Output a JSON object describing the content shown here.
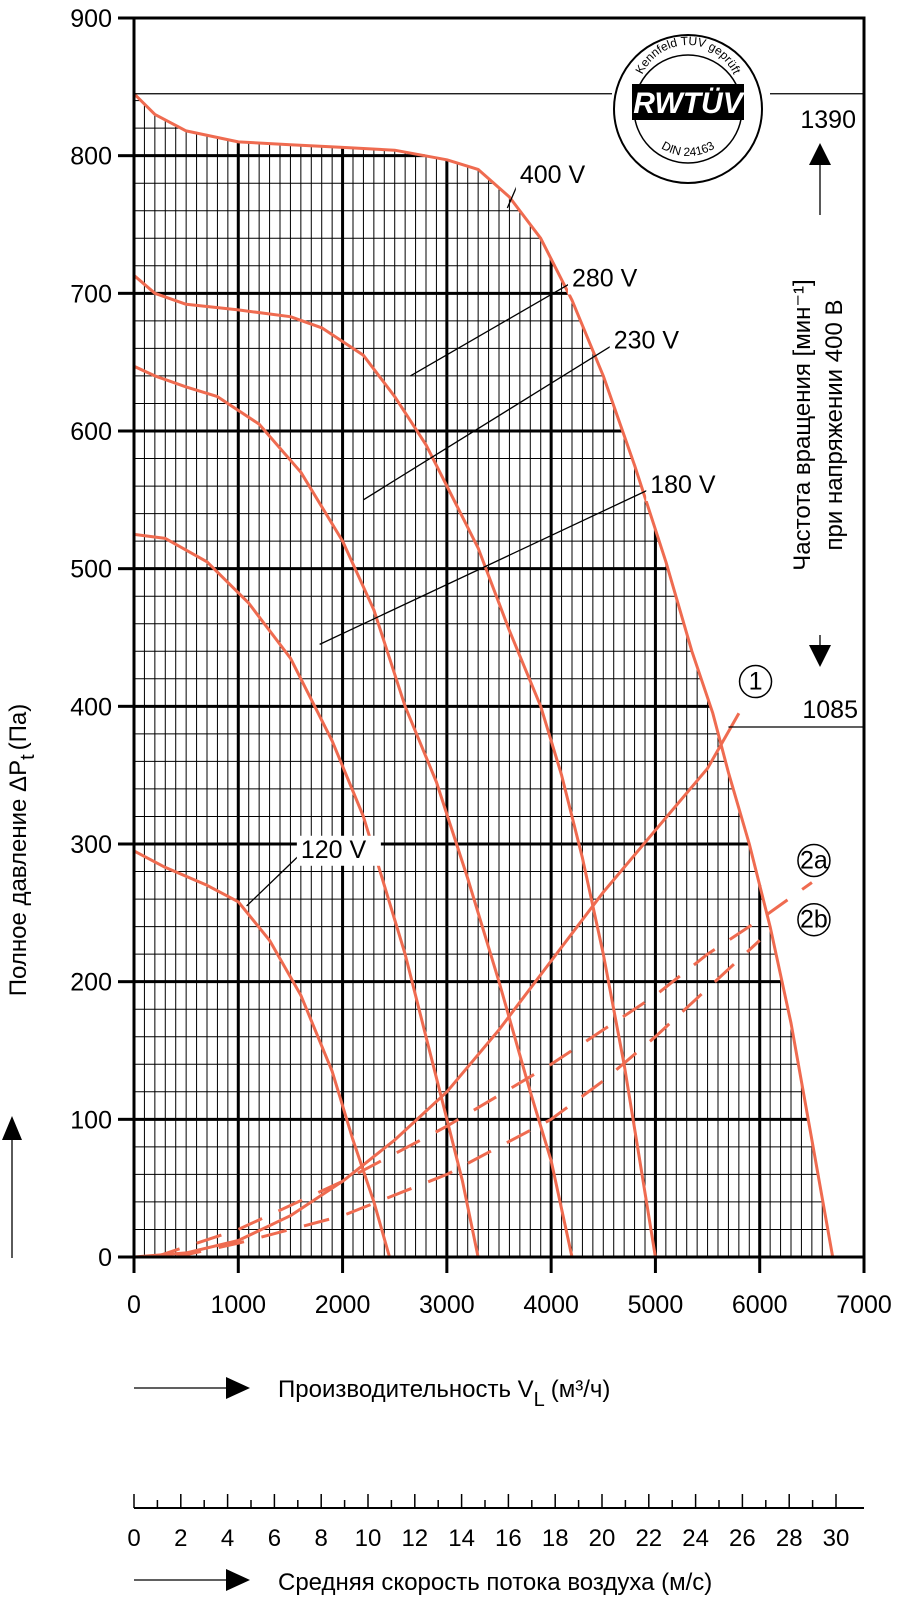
{
  "chart_data": {
    "type": "line",
    "xlabel": "Производительность V",
    "xlabel_sub": "L",
    "xlabel_unit": "(м³/ч)",
    "ylabel": "Полное давление ΔP",
    "ylabel_sub": "t",
    "ylabel_unit": "(Па)",
    "x2label": "Средняя скорость потока воздуха (м/с)",
    "right_label_line1": "Частота вращения [мин⁻¹]",
    "right_label_line2": "при напряжении 400 В",
    "xlim": [
      0,
      7000
    ],
    "ylim": [
      0,
      900
    ],
    "grid": true,
    "x_ticks": [
      "0",
      "1000",
      "2000",
      "3000",
      "4000",
      "5000",
      "6000",
      "7000"
    ],
    "y_ticks": [
      "0",
      "100",
      "200",
      "300",
      "400",
      "500",
      "600",
      "700",
      "800",
      "900"
    ],
    "x2_ticks": [
      "0",
      "2",
      "4",
      "6",
      "8",
      "10",
      "12",
      "14",
      "16",
      "18",
      "20",
      "22",
      "24",
      "26",
      "28",
      "30"
    ],
    "x2_max": 30,
    "rpm_top": "1390",
    "rpm_top_pressure": 845,
    "rpm_bottom": "1085",
    "rpm_bottom_pressure": 385,
    "seal": {
      "top": "Kennfeld TÜV geprüft",
      "logo": "RWTÜV",
      "bottom": "DIN 24163"
    },
    "curve_color": "#ef6b50",
    "series": [
      {
        "name": "400 V",
        "label_at": [
          3700,
          780
        ],
        "leader_to": [
          3580,
          762
        ],
        "points": [
          [
            0,
            845
          ],
          [
            200,
            830
          ],
          [
            500,
            818
          ],
          [
            1000,
            810
          ],
          [
            1500,
            808
          ],
          [
            2000,
            806
          ],
          [
            2500,
            804
          ],
          [
            3000,
            797
          ],
          [
            3300,
            790
          ],
          [
            3600,
            770
          ],
          [
            3900,
            740
          ],
          [
            4200,
            695
          ],
          [
            4500,
            640
          ],
          [
            4800,
            575
          ],
          [
            5100,
            505
          ],
          [
            5350,
            440
          ],
          [
            5550,
            395
          ],
          [
            5700,
            352
          ],
          [
            5900,
            300
          ],
          [
            6100,
            240
          ],
          [
            6300,
            170
          ],
          [
            6500,
            85
          ],
          [
            6700,
            0
          ]
        ]
      },
      {
        "name": "280 V",
        "label_at": [
          4200,
          705
        ],
        "leader_to": [
          2650,
          640
        ],
        "points": [
          [
            0,
            713
          ],
          [
            200,
            700
          ],
          [
            500,
            692
          ],
          [
            1000,
            688
          ],
          [
            1500,
            683
          ],
          [
            1800,
            675
          ],
          [
            2200,
            655
          ],
          [
            2500,
            625
          ],
          [
            2800,
            590
          ],
          [
            3000,
            560
          ],
          [
            3300,
            515
          ],
          [
            3600,
            455
          ],
          [
            3900,
            400
          ],
          [
            4100,
            350
          ],
          [
            4300,
            290
          ],
          [
            4500,
            220
          ],
          [
            4700,
            140
          ],
          [
            4850,
            70
          ],
          [
            5000,
            0
          ]
        ]
      },
      {
        "name": "230 V",
        "label_at": [
          4600,
          660
        ],
        "leader_to": [
          2200,
          550
        ],
        "points": [
          [
            0,
            647
          ],
          [
            200,
            640
          ],
          [
            500,
            632
          ],
          [
            800,
            625
          ],
          [
            1200,
            605
          ],
          [
            1600,
            570
          ],
          [
            2000,
            520
          ],
          [
            2300,
            470
          ],
          [
            2600,
            400
          ],
          [
            2900,
            345
          ],
          [
            3200,
            275
          ],
          [
            3500,
            200
          ],
          [
            3800,
            120
          ],
          [
            4000,
            70
          ],
          [
            4200,
            0
          ]
        ]
      },
      {
        "name": "180 V",
        "label_at": [
          4950,
          555
        ],
        "leader_to": [
          1780,
          445
        ],
        "points": [
          [
            0,
            525
          ],
          [
            300,
            522
          ],
          [
            700,
            505
          ],
          [
            1100,
            475
          ],
          [
            1500,
            435
          ],
          [
            1900,
            375
          ],
          [
            2200,
            320
          ],
          [
            2400,
            270
          ],
          [
            2600,
            220
          ],
          [
            2800,
            160
          ],
          [
            3000,
            100
          ],
          [
            3150,
            55
          ],
          [
            3300,
            0
          ]
        ]
      },
      {
        "name": "120 V",
        "label_at": [
          1600,
          290
        ],
        "leader_to": [
          1080,
          255
        ],
        "points": [
          [
            0,
            295
          ],
          [
            300,
            283
          ],
          [
            700,
            270
          ],
          [
            1000,
            258
          ],
          [
            1300,
            230
          ],
          [
            1600,
            190
          ],
          [
            1900,
            135
          ],
          [
            2100,
            85
          ],
          [
            2300,
            40
          ],
          [
            2450,
            0
          ]
        ]
      },
      {
        "name": "1",
        "dash": false,
        "marker_at": [
          5960,
          418
        ],
        "points": [
          [
            0,
            0
          ],
          [
            500,
            3
          ],
          [
            1000,
            12
          ],
          [
            1500,
            30
          ],
          [
            2000,
            55
          ],
          [
            2500,
            85
          ],
          [
            3000,
            120
          ],
          [
            3500,
            165
          ],
          [
            4000,
            215
          ],
          [
            4500,
            265
          ],
          [
            5000,
            310
          ],
          [
            5500,
            355
          ],
          [
            5800,
            395
          ]
        ]
      },
      {
        "name": "2a",
        "dash": true,
        "marker_at": [
          6520,
          288
        ],
        "points": [
          [
            200,
            0
          ],
          [
            1000,
            20
          ],
          [
            2000,
            55
          ],
          [
            3000,
            95
          ],
          [
            4000,
            140
          ],
          [
            4500,
            165
          ],
          [
            5000,
            190
          ],
          [
            5500,
            220
          ],
          [
            6000,
            245
          ],
          [
            6500,
            272
          ]
        ]
      },
      {
        "name": "2b",
        "dash": true,
        "marker_at": [
          6520,
          245
        ],
        "points": [
          [
            400,
            0
          ],
          [
            1000,
            10
          ],
          [
            2000,
            30
          ],
          [
            3000,
            60
          ],
          [
            4000,
            100
          ],
          [
            4500,
            128
          ],
          [
            5000,
            160
          ],
          [
            5500,
            195
          ],
          [
            6000,
            230
          ]
        ]
      }
    ]
  }
}
